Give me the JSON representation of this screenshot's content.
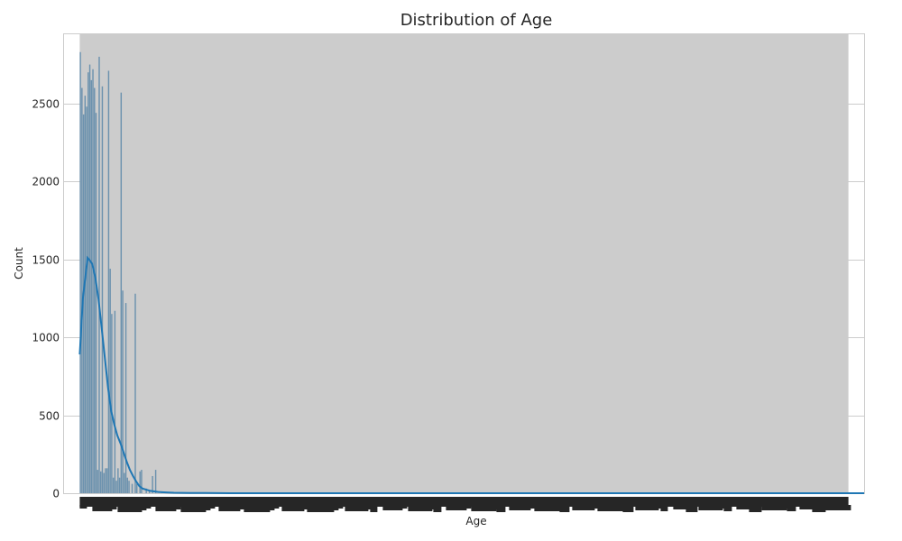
{
  "chart_data": {
    "type": "bar",
    "title": "Distribution of Age",
    "xlabel": "Age",
    "ylabel": "Count",
    "xlim": [
      -10,
      500
    ],
    "ylim": [
      0,
      2950
    ],
    "yticks": [
      0,
      500,
      1000,
      1500,
      2000,
      2500
    ],
    "grid": true,
    "colors": {
      "bar": "#5b87a8",
      "kde": "#1f77b4",
      "band": "#cccccc",
      "grid": "#cccccc",
      "text": "#262626"
    },
    "bars": [
      {
        "x": 0.5,
        "y": 2830
      },
      {
        "x": 1.5,
        "y": 2600
      },
      {
        "x": 2.5,
        "y": 2430
      },
      {
        "x": 3.5,
        "y": 2550
      },
      {
        "x": 4.5,
        "y": 2480
      },
      {
        "x": 5.5,
        "y": 2700
      },
      {
        "x": 6.5,
        "y": 2750
      },
      {
        "x": 7.5,
        "y": 2650
      },
      {
        "x": 8.5,
        "y": 2720
      },
      {
        "x": 9.5,
        "y": 2600
      },
      {
        "x": 10.5,
        "y": 2440
      },
      {
        "x": 11.5,
        "y": 150
      },
      {
        "x": 12.5,
        "y": 2800
      },
      {
        "x": 13.5,
        "y": 140
      },
      {
        "x": 14.5,
        "y": 2610
      },
      {
        "x": 15.5,
        "y": 130
      },
      {
        "x": 16.5,
        "y": 160
      },
      {
        "x": 17.5,
        "y": 160
      },
      {
        "x": 18.5,
        "y": 2710
      },
      {
        "x": 19.5,
        "y": 1440
      },
      {
        "x": 20.5,
        "y": 1150
      },
      {
        "x": 21.5,
        "y": 100
      },
      {
        "x": 22.5,
        "y": 1170
      },
      {
        "x": 23.5,
        "y": 80
      },
      {
        "x": 24.5,
        "y": 160
      },
      {
        "x": 25.5,
        "y": 100
      },
      {
        "x": 26.5,
        "y": 2570
      },
      {
        "x": 27.5,
        "y": 1300
      },
      {
        "x": 28.5,
        "y": 130
      },
      {
        "x": 29.5,
        "y": 1220
      },
      {
        "x": 30.5,
        "y": 100
      },
      {
        "x": 31.5,
        "y": 80
      },
      {
        "x": 33.5,
        "y": 60
      },
      {
        "x": 35.5,
        "y": 1280
      },
      {
        "x": 36.5,
        "y": 60
      },
      {
        "x": 38.5,
        "y": 140
      },
      {
        "x": 39.5,
        "y": 150
      },
      {
        "x": 42.5,
        "y": 30
      },
      {
        "x": 44.5,
        "y": 20
      },
      {
        "x": 46.5,
        "y": 110
      },
      {
        "x": 48.5,
        "y": 150
      },
      {
        "x": 52.5,
        "y": 10
      },
      {
        "x": 60.5,
        "y": 5
      }
    ],
    "kde": {
      "x": [
        0,
        2,
        4,
        5,
        6,
        8,
        10,
        12,
        14,
        16,
        18,
        20,
        22,
        24,
        26,
        28,
        30,
        32,
        34,
        36,
        38,
        40,
        45,
        50,
        55,
        60,
        70,
        80,
        100,
        150,
        200,
        300,
        400,
        500
      ],
      "y": [
        890,
        1250,
        1420,
        1510,
        1500,
        1470,
        1380,
        1240,
        1060,
        870,
        680,
        530,
        440,
        370,
        320,
        260,
        200,
        150,
        110,
        75,
        45,
        30,
        15,
        8,
        5,
        3,
        2,
        1,
        0,
        0,
        0,
        0,
        0,
        0
      ]
    }
  }
}
